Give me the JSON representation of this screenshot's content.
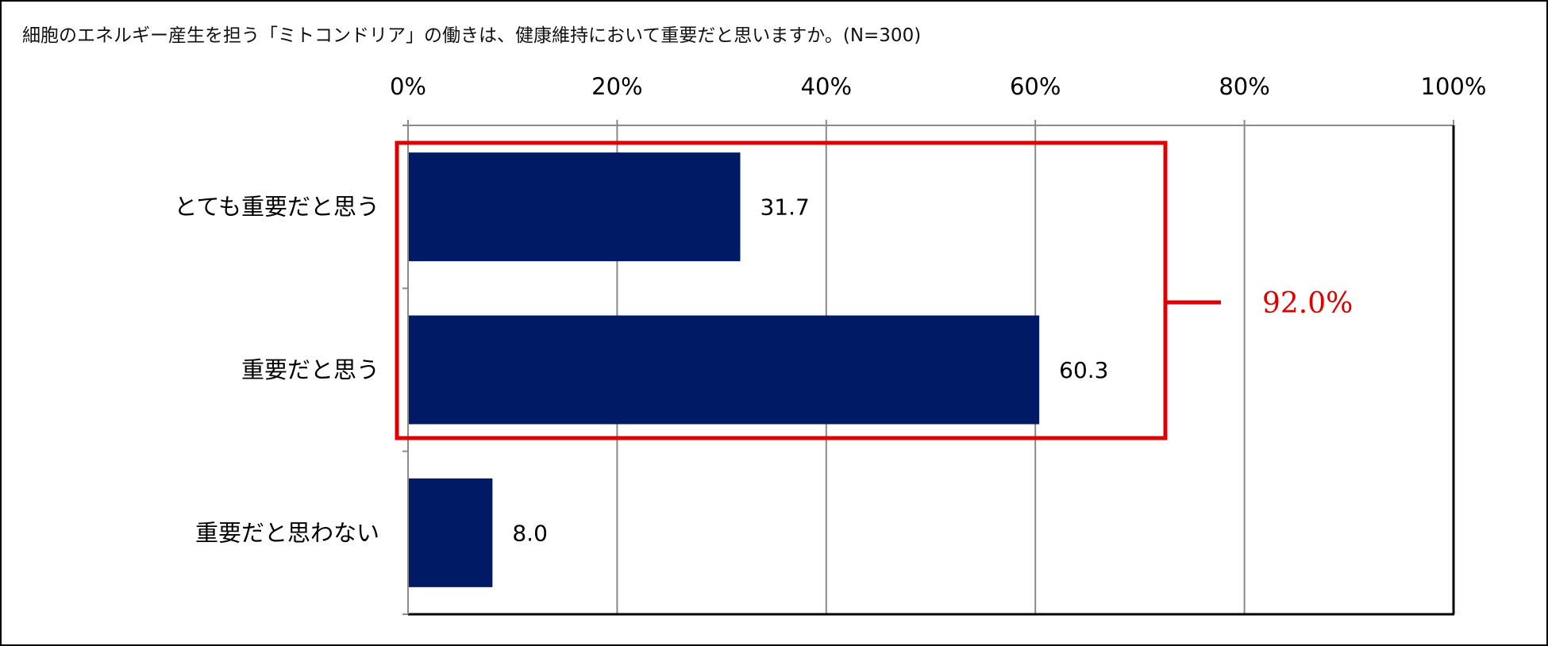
{
  "chart_data": {
    "type": "bar",
    "orientation": "horizontal",
    "title": "細胞のエネルギー産生を担う「ミトコンドリア」の働きは、健康維持において重要だと思いますか。(N=300)",
    "categories": [
      "とても重要だと思う",
      "重要だと思う",
      "重要だと思わない"
    ],
    "values": [
      31.7,
      60.3,
      8.0
    ],
    "value_labels": [
      "31.7",
      "60.3",
      "8.0"
    ],
    "xlim": [
      0,
      100
    ],
    "x_ticks": [
      0,
      20,
      40,
      60,
      80,
      100
    ],
    "x_tick_labels": [
      "0%",
      "20%",
      "40%",
      "60%",
      "80%",
      "100%"
    ],
    "x_axis_position": "top",
    "grid": true,
    "legend": "none",
    "bar_color": "#001A66",
    "annotation": {
      "text": "92.0%",
      "color": "#E00000",
      "brackets_categories": [
        "とても重要だと思う",
        "重要だと思う"
      ]
    }
  }
}
